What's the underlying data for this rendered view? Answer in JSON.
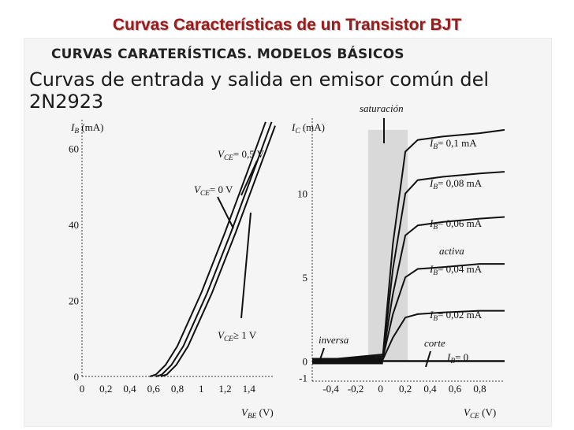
{
  "slide": {
    "title": "Curvas Características de un Transistor BJT"
  },
  "panel": {
    "heading": "CURVAS CARATERÍSTICAS. MODELOS BÁSICOS",
    "subtitle": "Curvas de entrada y salida en emisor común del 2N2923"
  },
  "chart_data": [
    {
      "type": "line",
      "y_axis_label": {
        "var": "I",
        "sub": "B",
        "unit": " (mA)"
      },
      "x_axis_label": {
        "var": "V",
        "sub": "BE",
        "unit": " (V)"
      },
      "x_ticks": [
        "0",
        "0,2",
        "0,4",
        "0,6",
        "0,8",
        "1",
        "1,2",
        "1,4"
      ],
      "x_tick_values": [
        0,
        0.2,
        0.4,
        0.6,
        0.8,
        1.0,
        1.2,
        1.4
      ],
      "y_ticks": [
        "0",
        "20",
        "40",
        "60"
      ],
      "y_tick_values": [
        0,
        20,
        40,
        60
      ],
      "xlim": [
        0,
        1.6
      ],
      "ylim": [
        0,
        68
      ],
      "series": [
        {
          "name": "V_CE = 0 V",
          "label": {
            "var": "V",
            "sub": "CE",
            "rest": "= 0 V"
          },
          "x": [
            0.57,
            0.62,
            0.7,
            0.8,
            1.0,
            1.2,
            1.4,
            1.54
          ],
          "y": [
            0,
            0.5,
            3,
            8,
            22,
            38,
            55,
            67
          ]
        },
        {
          "name": "V_CE = 0,5 V",
          "label": {
            "var": "V",
            "sub": "CE",
            "rest": "= 0,5 V"
          },
          "x": [
            0.62,
            0.67,
            0.75,
            0.85,
            1.05,
            1.25,
            1.45,
            1.59
          ],
          "y": [
            0,
            0.5,
            3,
            8,
            22,
            38,
            55,
            67
          ]
        },
        {
          "name": "V_CE ≥ 1 V",
          "label": {
            "var": "V",
            "sub": "CE",
            "rest": "≥ 1 V"
          },
          "x": [
            0.66,
            0.71,
            0.79,
            0.89,
            1.09,
            1.29,
            1.49,
            1.62
          ],
          "y": [
            0,
            0.5,
            3,
            8,
            22,
            38,
            55,
            66
          ]
        }
      ]
    },
    {
      "type": "line",
      "y_axis_label": {
        "var": "I",
        "sub": "C",
        "unit": " (mA)"
      },
      "x_axis_label": {
        "var": "V",
        "sub": "CE",
        "unit": " (V)"
      },
      "x_ticks": [
        "-0,4",
        "-0,2",
        "0",
        "0,2",
        "0,4",
        "0,6",
        "0,8"
      ],
      "x_tick_values": [
        -0.4,
        -0.2,
        0,
        0.2,
        0.4,
        0.6,
        0.8
      ],
      "y_ticks": [
        "-1",
        "0",
        "5",
        "10"
      ],
      "y_tick_values": [
        -1,
        0,
        5,
        10
      ],
      "xlim": [
        -0.55,
        1.0
      ],
      "ylim": [
        -1.2,
        14.5
      ],
      "regions": [
        {
          "name": "saturación",
          "x": [
            -0.1,
            0.22
          ]
        }
      ],
      "annotations": [
        "saturación",
        "activa",
        "inversa",
        "corte"
      ],
      "series": [
        {
          "name": "I_B = 0,1 mA",
          "label": {
            "var": "I",
            "sub": "B",
            "rest": "= 0,1 mA"
          },
          "x": [
            -0.55,
            0.02,
            0.1,
            0.2,
            0.3,
            0.5,
            0.8,
            1.0
          ],
          "y": [
            0,
            0.4,
            7.0,
            12.5,
            13.2,
            13.4,
            13.6,
            13.8
          ]
        },
        {
          "name": "I_B = 0,08 mA",
          "label": {
            "var": "I",
            "sub": "B",
            "rest": "= 0,08 mA"
          },
          "x": [
            -0.55,
            0.02,
            0.1,
            0.2,
            0.3,
            0.5,
            0.8,
            1.0
          ],
          "y": [
            0,
            0.3,
            5.5,
            10.0,
            10.8,
            11.0,
            11.2,
            11.3
          ]
        },
        {
          "name": "I_B = 0,06 mA",
          "label": {
            "var": "I",
            "sub": "B",
            "rest": "= 0,06 mA"
          },
          "x": [
            -0.55,
            0.02,
            0.1,
            0.2,
            0.3,
            0.5,
            0.8,
            1.0
          ],
          "y": [
            0,
            0.3,
            4.0,
            7.5,
            8.1,
            8.3,
            8.5,
            8.6
          ]
        },
        {
          "name": "I_B = 0,04 mA",
          "label": {
            "var": "I",
            "sub": "B",
            "rest": "= 0,04 mA"
          },
          "x": [
            -0.55,
            0.02,
            0.1,
            0.2,
            0.3,
            0.5,
            0.8,
            1.0
          ],
          "y": [
            0,
            0.2,
            2.8,
            5.0,
            5.5,
            5.6,
            5.8,
            5.8
          ]
        },
        {
          "name": "I_B = 0,02 mA",
          "label": {
            "var": "I",
            "sub": "B",
            "rest": "= 0,02 mA"
          },
          "x": [
            -0.55,
            0.02,
            0.1,
            0.2,
            0.3,
            0.5,
            0.8,
            1.0
          ],
          "y": [
            0,
            0.1,
            1.4,
            2.6,
            2.8,
            2.9,
            3.0,
            3.0
          ]
        },
        {
          "name": "I_B = 0",
          "label": {
            "var": "I",
            "sub": "B",
            "rest": "= 0"
          },
          "x": [
            -0.55,
            0.0,
            0.5,
            1.0
          ],
          "y": [
            0,
            0,
            0,
            0
          ]
        }
      ]
    }
  ],
  "colors": {
    "title": "#9b1b1b",
    "curve": "#111111",
    "saturation_band": "#d9d9d9"
  }
}
